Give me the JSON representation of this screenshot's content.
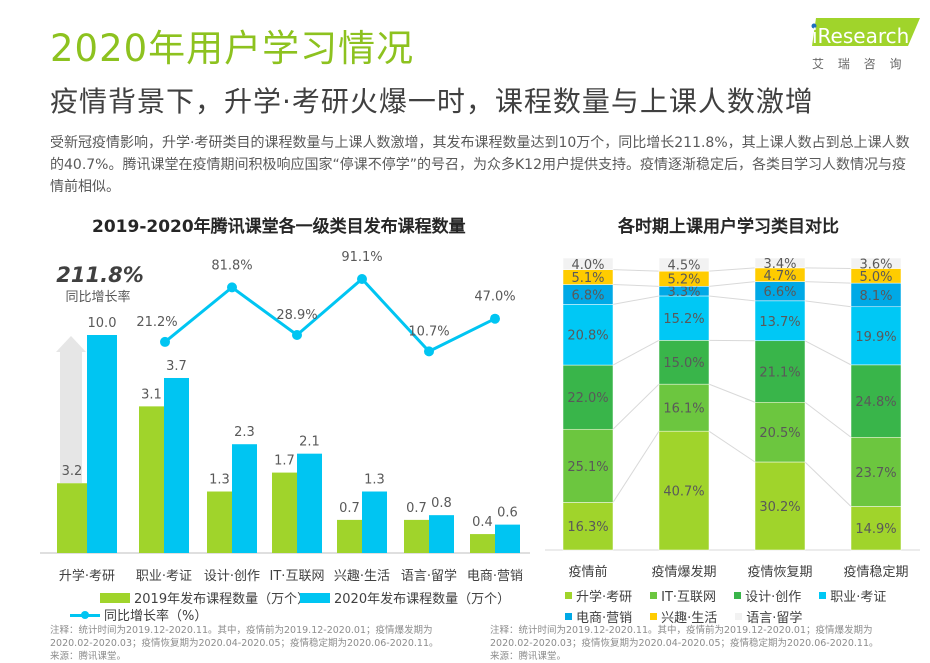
{
  "header": {
    "title": "2020年用户学习情况",
    "subtitle": "疫情背景下，升学·考研火爆一时，课程数量与上课人数激增",
    "description": "受新冠疫情影响，升学·考研类目的课程数量与上课人数激增，其发布课程数量达到10万个，同比增长211.8%，其上课人数占到总上课人数的40.7%。腾讯课堂在疫情期间积极响应国家“停课不停学”的号召，为众多K12用户提供支持。疫情逐渐稳定后，各类目学习人数情况与疫情前相似。",
    "logo_text": "iResearch",
    "logo_cn": "艾 瑞 咨 询"
  },
  "colors": {
    "green": "#a0d42b",
    "blue": "#00c5f2",
    "line": "#00c5f2",
    "title_green": "#8dc21f"
  },
  "chart_data": [
    {
      "type": "bar",
      "title": "2019-2020年腾讯课堂各一级类目发布课程数量",
      "categories": [
        "升学·考研",
        "职业·考证",
        "设计·创作",
        "IT·互联网",
        "兴趣·生活",
        "语言·留学",
        "电商·营销"
      ],
      "series": [
        {
          "name": "2019年发布课程数量（万个）",
          "values": [
            3.2,
            3.1,
            1.3,
            1.7,
            0.7,
            0.7,
            0.4
          ]
        },
        {
          "name": "2020年发布课程数量（万个）",
          "values": [
            10.0,
            3.7,
            2.3,
            2.1,
            1.3,
            0.8,
            0.6
          ]
        },
        {
          "name": "同比增长率（%）",
          "type": "line",
          "values": [
            211.8,
            21.2,
            81.8,
            28.9,
            91.1,
            10.7,
            47.0
          ],
          "labels": [
            "211.8%",
            "21.2%",
            "81.8%",
            "28.9%",
            "91.1%",
            "10.7%",
            "47.0%"
          ]
        }
      ],
      "highlight": {
        "value": "211.8%",
        "label": "同比增长率"
      },
      "note": "注释：统计时间为2019.12-2020.11。其中，疫情前为2019.12-2020.01；疫情爆发期为2020.02-2020.03；疫情恢复期为2020.04-2020.05；疫情稳定期为2020.06-2020.11。",
      "source": "来源：腾讯课堂。"
    },
    {
      "type": "bar",
      "stacked": true,
      "title": "各时期上课用户学习类目对比",
      "categories": [
        "疫情前",
        "疫情爆发期",
        "疫情恢复期",
        "疫情稳定期"
      ],
      "series": [
        {
          "name": "升学·考研",
          "color": "#a0d42b",
          "values": [
            16.3,
            40.7,
            30.2,
            14.9
          ]
        },
        {
          "name": "IT·互联网",
          "color": "#6cc63f",
          "values": [
            25.1,
            16.1,
            20.5,
            23.7
          ]
        },
        {
          "name": "设计·创作",
          "color": "#39b54a",
          "values": [
            22.0,
            15.0,
            21.1,
            24.8
          ]
        },
        {
          "name": "职业·考证",
          "color": "#00c8f5",
          "values": [
            20.8,
            15.2,
            13.7,
            19.9
          ]
        },
        {
          "name": "电商·营销",
          "color": "#00a9e6",
          "values": [
            6.8,
            3.3,
            6.6,
            8.1
          ]
        },
        {
          "name": "兴趣·生活",
          "color": "#ffcc00",
          "values": [
            5.1,
            5.2,
            4.7,
            5.0
          ]
        },
        {
          "name": "语言·留学",
          "color": "#f2f2f2",
          "values": [
            4.0,
            4.5,
            3.4,
            3.6
          ]
        }
      ],
      "unit": "%",
      "note": "注释：统计时间为2019.12-2020.11。其中，疫情前为2019.12-2020.01；疫情爆发期为2020.02-2020.03；疫情恢复期为2020.04-2020.05；疫情稳定期为2020.06-2020.11。",
      "source": "来源：腾讯课堂。"
    }
  ]
}
